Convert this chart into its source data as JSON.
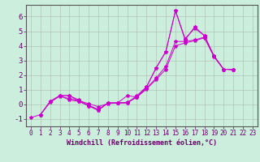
{
  "xlabel": "Windchill (Refroidissement éolien,°C)",
  "background_color": "#cceedd",
  "line_color": "#cc00cc",
  "grid_color": "#aabbaa",
  "xlim": [
    -0.5,
    23.5
  ],
  "ylim": [
    -1.5,
    6.8
  ],
  "yticks": [
    -1,
    0,
    1,
    2,
    3,
    4,
    5,
    6
  ],
  "xticks": [
    0,
    1,
    2,
    3,
    4,
    5,
    6,
    7,
    8,
    9,
    10,
    11,
    12,
    13,
    14,
    15,
    16,
    17,
    18,
    19,
    20,
    21,
    22,
    23
  ],
  "line1_x": [
    1,
    2,
    3,
    4,
    5,
    6,
    7,
    8,
    9,
    10,
    11,
    12,
    13,
    14,
    15,
    16,
    17,
    18,
    19,
    20,
    21
  ],
  "line1_y": [
    -0.7,
    0.2,
    0.6,
    0.6,
    0.3,
    -0.1,
    -0.4,
    0.1,
    0.1,
    0.1,
    0.6,
    1.2,
    2.5,
    3.6,
    6.4,
    4.4,
    5.3,
    4.7,
    3.3,
    2.4,
    2.4
  ],
  "line2_x": [
    3,
    4,
    5,
    6,
    7,
    8,
    9,
    10,
    11,
    12,
    13,
    14,
    15,
    16,
    17,
    18,
    19,
    20,
    21
  ],
  "line2_y": [
    0.6,
    0.6,
    0.2,
    -0.1,
    -0.4,
    0.1,
    0.1,
    0.6,
    0.5,
    1.2,
    2.5,
    3.6,
    6.4,
    4.5,
    5.2,
    4.7,
    3.3,
    2.4,
    2.4
  ],
  "line3_x": [
    1,
    2,
    3,
    4,
    5,
    6,
    7,
    8,
    9,
    10,
    11,
    12,
    13,
    14,
    15,
    16,
    17,
    18,
    19,
    20,
    21
  ],
  "line3_y": [
    -0.7,
    0.2,
    0.6,
    0.3,
    0.2,
    -0.05,
    -0.35,
    0.1,
    0.1,
    0.1,
    0.5,
    1.1,
    1.8,
    2.6,
    4.3,
    4.3,
    4.4,
    4.6,
    3.3,
    2.4,
    2.4
  ],
  "line4_x": [
    0,
    1,
    2,
    3,
    4,
    5,
    6,
    7,
    8,
    9,
    10,
    11,
    12,
    13,
    14,
    15,
    16,
    17,
    18,
    19,
    20,
    21
  ],
  "line4_y": [
    -0.9,
    -0.7,
    0.15,
    0.55,
    0.4,
    0.25,
    0.05,
    -0.15,
    0.05,
    0.1,
    0.15,
    0.5,
    1.05,
    1.7,
    2.4,
    4.0,
    4.2,
    4.35,
    4.55,
    3.25,
    2.4,
    2.35
  ],
  "xlabel_fontsize": 6.0,
  "tick_fontsize": 5.5,
  "ytick_fontsize": 6.5,
  "marker_size": 3.0,
  "line_width": 0.7
}
